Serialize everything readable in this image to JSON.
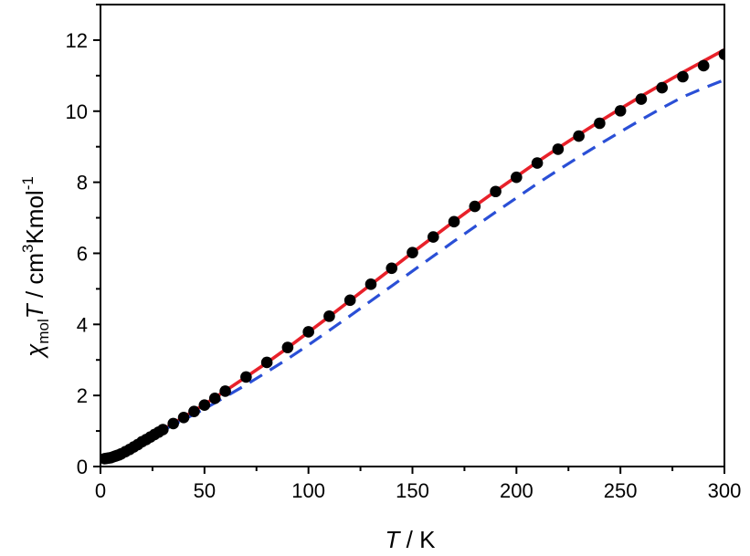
{
  "chart_data": {
    "type": "line",
    "xlabel": {
      "italic": "T",
      "rest": " / K"
    },
    "ylabel": {
      "chi": "χ",
      "sub": "mol",
      "italic": "T",
      "rest1": " / cm",
      "sup1": "3",
      "rest2": "Kmol",
      "sup2": "-1"
    },
    "xlim": [
      0,
      300
    ],
    "ylim": [
      0,
      13
    ],
    "xticks": [
      0,
      50,
      100,
      150,
      200,
      250,
      300
    ],
    "yticks": [
      0,
      2,
      4,
      6,
      8,
      10,
      12
    ],
    "grid": false,
    "legend": "none",
    "series": [
      {
        "style": "markers",
        "color": "#000000",
        "x": [
          2,
          3,
          4,
          5,
          6,
          7,
          8,
          9,
          10,
          12,
          14,
          16,
          18,
          20,
          22,
          24,
          26,
          28,
          30,
          35,
          40,
          45,
          50,
          55,
          60,
          70,
          80,
          90,
          100,
          110,
          120,
          130,
          140,
          150,
          160,
          170,
          180,
          190,
          200,
          210,
          220,
          230,
          240,
          250,
          260,
          270,
          280,
          290,
          300
        ],
        "y": [
          0.22,
          0.23,
          0.24,
          0.25,
          0.27,
          0.29,
          0.31,
          0.33,
          0.36,
          0.42,
          0.48,
          0.55,
          0.62,
          0.7,
          0.76,
          0.83,
          0.9,
          0.97,
          1.04,
          1.21,
          1.38,
          1.55,
          1.73,
          1.92,
          2.12,
          2.52,
          2.93,
          3.35,
          3.79,
          4.23,
          4.68,
          5.13,
          5.58,
          6.02,
          6.46,
          6.89,
          7.32,
          7.74,
          8.14,
          8.54,
          8.93,
          9.3,
          9.66,
          10.01,
          10.34,
          10.66,
          10.97,
          11.28,
          11.6
        ]
      },
      {
        "style": "solid",
        "color": "#e8212a",
        "x": [
          1,
          4,
          7,
          10,
          20,
          30,
          40,
          50,
          60,
          70,
          80,
          90,
          100,
          110,
          120,
          130,
          140,
          150,
          160,
          170,
          180,
          190,
          200,
          210,
          220,
          230,
          240,
          250,
          260,
          270,
          280,
          290,
          300
        ],
        "y": [
          0.24,
          0.25,
          0.28,
          0.36,
          0.7,
          1.04,
          1.39,
          1.75,
          2.13,
          2.52,
          2.92,
          3.34,
          3.78,
          4.22,
          4.67,
          5.12,
          5.57,
          6.02,
          6.46,
          6.9,
          7.33,
          7.75,
          8.16,
          8.57,
          8.96,
          9.34,
          9.71,
          10.07,
          10.42,
          10.76,
          11.09,
          11.41,
          11.73
        ]
      },
      {
        "style": "dashed",
        "color": "#2a4fd6",
        "x": [
          1,
          4,
          7,
          10,
          20,
          30,
          40,
          50,
          60,
          70,
          80,
          90,
          100,
          110,
          120,
          130,
          140,
          150,
          160,
          170,
          180,
          190,
          200,
          210,
          220,
          230,
          240,
          250,
          260,
          270,
          280,
          290,
          300
        ],
        "y": [
          0.24,
          0.25,
          0.28,
          0.36,
          0.68,
          1.02,
          1.32,
          1.62,
          1.96,
          2.3,
          2.66,
          3.03,
          3.42,
          3.83,
          4.24,
          4.66,
          5.08,
          5.5,
          5.92,
          6.34,
          6.75,
          7.16,
          7.56,
          7.96,
          8.34,
          8.71,
          9.07,
          9.42,
          9.76,
          10.09,
          10.4,
          10.65,
          10.88
        ]
      }
    ]
  }
}
